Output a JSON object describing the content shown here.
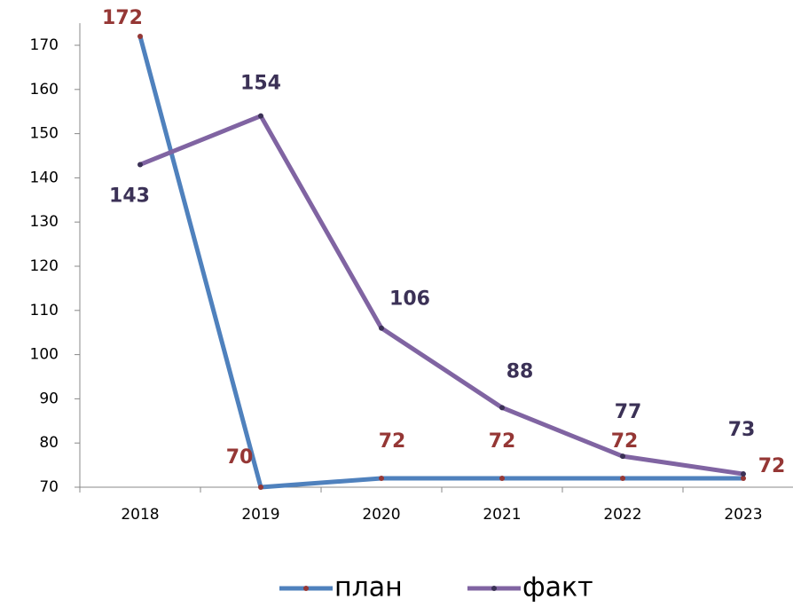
{
  "chart_data": {
    "type": "line",
    "categories": [
      "2018",
      "2019",
      "2020",
      "2021",
      "2022",
      "2023"
    ],
    "series": [
      {
        "name": "план",
        "color": "#4f81bd",
        "label_color": "#953735",
        "values": [
          172,
          70,
          72,
          72,
          72,
          72
        ]
      },
      {
        "name": "факт",
        "color": "#8064a2",
        "label_color": "#3b3156",
        "values": [
          143,
          154,
          106,
          88,
          77,
          73
        ]
      }
    ],
    "ylim": [
      70,
      175
    ],
    "yticks": [
      70,
      80,
      90,
      100,
      110,
      120,
      130,
      140,
      150,
      160,
      170
    ],
    "legend": "bottom",
    "grid": false
  }
}
